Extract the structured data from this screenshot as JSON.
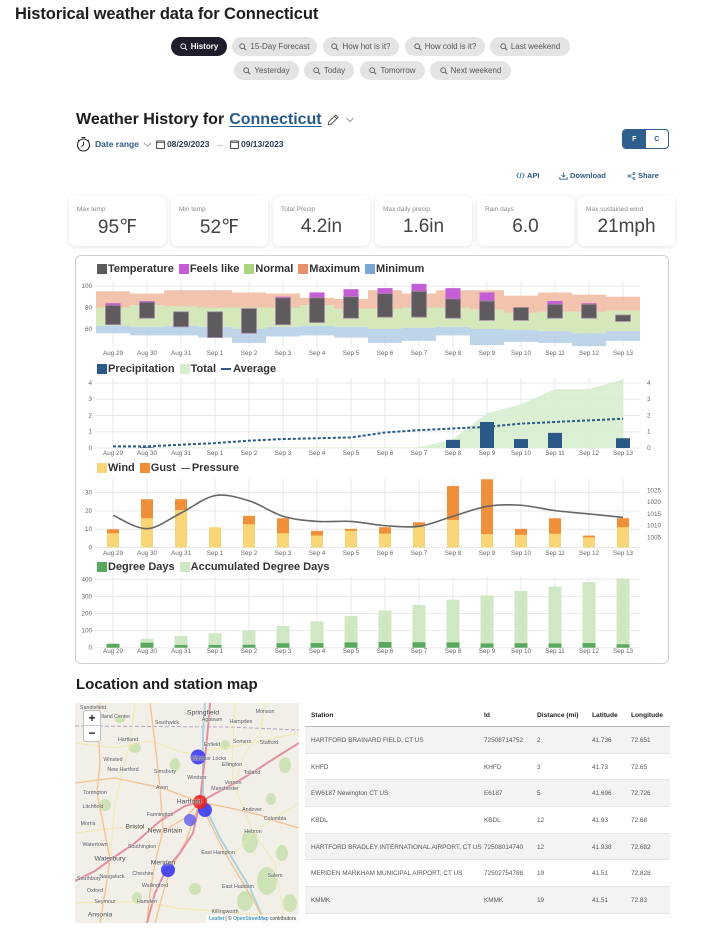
{
  "page": {
    "title": "Historical weather data for Connecticut"
  },
  "chips": [
    {
      "label": "History",
      "active": true
    },
    {
      "label": "15-Day Forecast",
      "active": false
    },
    {
      "label": "How hot is it?",
      "active": false
    },
    {
      "label": "How cold is it?",
      "active": false
    },
    {
      "label": "Last weekend",
      "active": false
    },
    {
      "label": "Yesterday",
      "active": false
    },
    {
      "label": "Today",
      "active": false
    },
    {
      "label": "Tomorrow",
      "active": false
    },
    {
      "label": "Next weekend",
      "active": false
    }
  ],
  "header": {
    "title_prefix": "Weather History for",
    "location": "Connecticut",
    "date_range_label": "Date range",
    "start_date": "08/29/2023",
    "arrow": "→",
    "end_date": "09/13/2023"
  },
  "units": {
    "options": [
      "F",
      "C"
    ],
    "selected": "F"
  },
  "actions": [
    {
      "icon": "code-icon",
      "label": "API"
    },
    {
      "icon": "download-icon",
      "label": "Download"
    },
    {
      "icon": "share-icon",
      "label": "Share"
    }
  ],
  "stats": [
    {
      "label": "Max temp",
      "value": "95℉"
    },
    {
      "label": "Min temp",
      "value": "52℉"
    },
    {
      "label": "Total Precip",
      "value": "4.2in"
    },
    {
      "label": "Max daily precip",
      "value": "1.6in"
    },
    {
      "label": "Rain days",
      "value": "6.0"
    },
    {
      "label": "Max sustained wind",
      "value": "21mph"
    }
  ],
  "chart_data": [
    {
      "type": "bar",
      "title": "Temperature",
      "categories": [
        "Aug 29",
        "Aug 30",
        "Aug 31",
        "Sep 1",
        "Sep 2",
        "Sep 3",
        "Sep 4",
        "Sep 5",
        "Sep 6",
        "Sep 7",
        "Sep 8",
        "Sep 9",
        "Sep 10",
        "Sep 11",
        "Sep 12",
        "Sep 13"
      ],
      "legend": [
        {
          "label": "Temperature",
          "color": "#5d595c"
        },
        {
          "label": "Feels like",
          "color": "#c45ed6"
        },
        {
          "label": "Normal",
          "color": "#a9d67e"
        },
        {
          "label": "Maximum",
          "color": "#e8906a"
        },
        {
          "label": "Minimum",
          "color": "#7aa6d6"
        }
      ],
      "xlabel": "",
      "ylabel": "",
      "ylim": [
        45,
        105
      ],
      "yticks": [
        60,
        80,
        100
      ],
      "grid": true,
      "legend_position": "top-left",
      "series": [
        {
          "key": "temp_max",
          "name": "Temperature (max)",
          "color": "#5f5a5d",
          "values": [
            82,
            85,
            76,
            76,
            79,
            89,
            89,
            90,
            93,
            95,
            88,
            86,
            80,
            83,
            83,
            73
          ]
        },
        {
          "key": "temp_min",
          "name": "Temperature (min)",
          "color": "#5f5a5d",
          "values": [
            64,
            70,
            62,
            52,
            56,
            64,
            66,
            70,
            71,
            71,
            70,
            68,
            68,
            70,
            70,
            67
          ]
        },
        {
          "key": "feels_like",
          "name": "Feels like",
          "color": "#c45ed6",
          "values": [
            84,
            86,
            76,
            76,
            79,
            90,
            94,
            97,
            98,
            102,
            98,
            94,
            80,
            86,
            84,
            73
          ]
        },
        {
          "key": "normal_max",
          "name": "Normal (max)",
          "color": "#cfe6b1",
          "values": [
            80,
            82,
            81,
            80,
            80,
            80,
            82,
            79,
            79,
            80,
            80,
            78,
            75,
            76,
            76,
            77
          ]
        },
        {
          "key": "normal_min",
          "name": "Normal (min)",
          "color": "#cfe6b1",
          "values": [
            63,
            62,
            63,
            62,
            60,
            62,
            63,
            62,
            60,
            61,
            62,
            60,
            59,
            58,
            56,
            58
          ]
        },
        {
          "key": "maximum",
          "name": "Maximum",
          "color": "#f1bea5",
          "values": [
            95,
            93,
            96,
            96,
            94,
            93,
            89,
            88,
            96,
            93,
            96,
            96,
            91,
            94,
            92,
            90
          ]
        },
        {
          "key": "minimum",
          "name": "Minimum",
          "color": "#b7cfe7",
          "values": [
            56,
            54,
            54,
            52,
            47,
            53,
            54,
            52,
            47,
            49,
            54,
            45,
            48,
            47,
            44,
            49
          ]
        }
      ]
    },
    {
      "type": "bar",
      "title": "Precipitation",
      "categories": [
        "Aug 29",
        "Aug 30",
        "Aug 31",
        "Sep 1",
        "Sep 2",
        "Sep 3",
        "Sep 4",
        "Sep 5",
        "Sep 6",
        "Sep 7",
        "Sep 8",
        "Sep 9",
        "Sep 10",
        "Sep 11",
        "Sep 12",
        "Sep 13"
      ],
      "legend": [
        {
          "label": "Precipitation",
          "color": "#2b5987"
        },
        {
          "label": "Total",
          "color": "#d6edcf"
        },
        {
          "label": "Average",
          "color": "#2b5987",
          "style": "dashed"
        }
      ],
      "xlabel": "",
      "ylabel": "",
      "ylim": [
        0,
        4.3
      ],
      "yticks": [
        0,
        1,
        2,
        3,
        4
      ],
      "y2lim": [
        0,
        4.3
      ],
      "y2ticks": [
        0,
        1,
        2,
        3,
        4
      ],
      "grid": true,
      "legend_position": "top-left",
      "series": [
        {
          "key": "precip",
          "name": "Precipitation",
          "color": "#2b5987",
          "values": [
            0,
            0.04,
            0,
            0,
            0,
            0,
            0,
            0,
            0,
            0,
            0.5,
            1.6,
            0.55,
            0.93,
            0,
            0.6
          ]
        },
        {
          "key": "total",
          "name": "Total",
          "color": "#d6edcf",
          "values": [
            0,
            0.04,
            0.04,
            0.04,
            0.04,
            0.04,
            0.04,
            0.04,
            0.04,
            0.04,
            0.54,
            2.14,
            2.69,
            3.62,
            3.62,
            4.22
          ]
        },
        {
          "key": "average",
          "name": "Average",
          "color": "#2b5987",
          "values": [
            0.1,
            0.1,
            0.2,
            0.3,
            0.45,
            0.55,
            0.6,
            0.65,
            0.95,
            1.1,
            1.2,
            1.3,
            1.5,
            1.6,
            1.7,
            1.8
          ]
        }
      ]
    },
    {
      "type": "bar",
      "title": "Wind",
      "categories": [
        "Aug 29",
        "Aug 30",
        "Aug 31",
        "Sep 1",
        "Sep 2",
        "Sep 3",
        "Sep 4",
        "Sep 5",
        "Sep 6",
        "Sep 7",
        "Sep 8",
        "Sep 9",
        "Sep 10",
        "Sep 11",
        "Sep 12",
        "Sep 13"
      ],
      "legend": [
        {
          "label": "Wind",
          "color": "#f8d677"
        },
        {
          "label": "Gust",
          "color": "#ef8f3a"
        },
        {
          "label": "Pressure",
          "color": "#666666",
          "style": "line"
        }
      ],
      "xlabel": "",
      "ylabel": "",
      "ylim": [
        0,
        37.5
      ],
      "yticks": [
        0,
        10,
        20,
        30
      ],
      "y2lim": [
        1001,
        1027
      ],
      "y2ticks": [
        1005,
        1010,
        1015,
        1020,
        1025
      ],
      "grid": true,
      "legend_position": "top-left",
      "series": [
        {
          "key": "wind",
          "name": "Wind",
          "color": "#f8d677",
          "values": [
            7.8,
            16,
            20.5,
            11.1,
            12.7,
            7.8,
            6.5,
            9.1,
            7.6,
            11.8,
            15.1,
            7.3,
            6.9,
            7.5,
            5.5,
            11.1
          ]
        },
        {
          "key": "gust",
          "name": "Gust",
          "color": "#ef8f3a",
          "values": [
            10,
            26.4,
            26.4,
            null,
            17.3,
            16,
            9.1,
            10.2,
            11.1,
            13.8,
            33.6,
            37.3,
            10.2,
            16,
            6.5,
            16
          ]
        },
        {
          "key": "pressure",
          "name": "Pressure",
          "color": "#666666",
          "axis": "right",
          "values": [
            1014.4,
            1008.7,
            1015.4,
            1022.8,
            1020.6,
            1014,
            1011.8,
            1011.8,
            1010,
            1009.7,
            1014,
            1018.2,
            1018.7,
            1016.4,
            1015,
            1013.5
          ]
        }
      ]
    },
    {
      "type": "bar",
      "title": "Degree Days",
      "categories": [
        "Aug 29",
        "Aug 30",
        "Aug 31",
        "Sep 1",
        "Sep 2",
        "Sep 3",
        "Sep 4",
        "Sep 5",
        "Sep 6",
        "Sep 7",
        "Sep 8",
        "Sep 9",
        "Sep 10",
        "Sep 11",
        "Sep 12",
        "Sep 13"
      ],
      "legend": [
        {
          "label": "Degree Days",
          "color": "#5aa85e"
        },
        {
          "label": "Accumulated Degree Days",
          "color": "#cde8c3"
        }
      ],
      "xlabel": "",
      "ylabel": "",
      "ylim": [
        0,
        400
      ],
      "yticks": [
        0,
        100,
        200,
        300,
        400
      ],
      "grid": true,
      "legend_position": "top-left",
      "series": [
        {
          "key": "dd",
          "name": "Degree Days",
          "color": "#5aa85e",
          "values": [
            23,
            29,
            16,
            16,
            17,
            26,
            27,
            31,
            33,
            32,
            31,
            25,
            26,
            25,
            27,
            20
          ]
        },
        {
          "key": "acc",
          "name": "Accumulated Degree Days",
          "color": "#cde8c3",
          "values": [
            23,
            52,
            68,
            84,
            101,
            127,
            154,
            185,
            218,
            250,
            281,
            306,
            332,
            357,
            384,
            404
          ]
        }
      ]
    }
  ],
  "map_section": {
    "title": "Location and station map"
  },
  "map": {
    "zoom_in": "+",
    "zoom_out": "−",
    "attribution": {
      "leaflet": "Leaflet",
      "sep": " | © ",
      "osm": "OpenStreetMap",
      "suffix": " contributors"
    },
    "marker_colors": {
      "location": "#e8251f",
      "station": "#3636f0"
    },
    "places": [
      "Sandisfield",
      "Tolland Center",
      "Southwick",
      "Springfield",
      "Agawam",
      "Hampden",
      "Monson",
      "Hartland",
      "Enfield",
      "Somers",
      "Stafford",
      "Winsted",
      "Windsor Locks",
      "Ellington",
      "New Hartford",
      "Simsbury",
      "Windsor",
      "Tolland",
      "Vernon",
      "Torrington",
      "Avon",
      "Manchester",
      "Hartford",
      "Litchfield",
      "Farmington",
      "Andover",
      "Morris",
      "Bristol",
      "New Britain",
      "Columbia",
      "Hebron",
      "Watertown",
      "Southington",
      "East Hampton",
      "Waterbury",
      "Meriden",
      "Cheshire",
      "Southbury",
      "Naugatuck",
      "Salem",
      "Wallingford",
      "East Haddam",
      "Oxford",
      "Seymour",
      "Hamden",
      "Killingworth",
      "Ansonia"
    ]
  },
  "stations": {
    "columns": [
      "Station",
      "Id",
      "Distance (mi)",
      "Latitude",
      "Longitude"
    ],
    "rows": [
      {
        "station": "HARTFORD BRAINARD FIELD, CT US",
        "id": "72508714752",
        "distance": "2",
        "latitude": "41.736",
        "longitude": "72.651"
      },
      {
        "station": "KHFD",
        "id": "KHFD",
        "distance": "3",
        "latitude": "41.73",
        "longitude": "72.65"
      },
      {
        "station": "EW6187 Newington CT US",
        "id": "E6187",
        "distance": "5",
        "latitude": "41.696",
        "longitude": "72.726"
      },
      {
        "station": "KBDL",
        "id": "KBDL",
        "distance": "12",
        "latitude": "41.93",
        "longitude": "72.68"
      },
      {
        "station": "HARTFORD BRADLEY INTERNATIONAL AIRPORT, CT US",
        "id": "72508014740",
        "distance": "12",
        "latitude": "41.938",
        "longitude": "72.682"
      },
      {
        "station": "MERIDEN MARKHAM MUNICIPAL AIRPORT, CT US",
        "id": "72502754788",
        "distance": "19",
        "latitude": "41.51",
        "longitude": "72.828"
      },
      {
        "station": "KMMK",
        "id": "KMMK",
        "distance": "19",
        "latitude": "41.51",
        "longitude": "72.83"
      }
    ]
  }
}
